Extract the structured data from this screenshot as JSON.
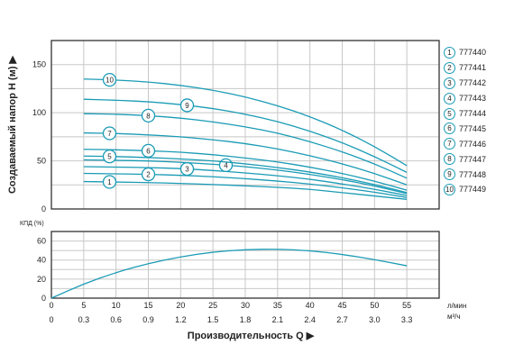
{
  "chart_data": [
    {
      "type": "line",
      "title": "",
      "ylabel": "Создаваемый напор Н (м) ▶",
      "ylim": [
        0,
        175
      ],
      "yticks": [
        0,
        50,
        100,
        150
      ],
      "x": [
        5,
        10,
        15,
        20,
        25,
        30,
        35,
        40,
        45,
        50,
        55
      ],
      "xlim": [
        0,
        60
      ],
      "grid": true,
      "legend_position": "right",
      "series": [
        {
          "name": "1",
          "values": [
            28.5,
            28,
            27.5,
            26.5,
            25.5,
            24,
            22.5,
            20.5,
            17,
            13.5,
            10
          ]
        },
        {
          "name": "2",
          "values": [
            37,
            36.5,
            36,
            35,
            33.5,
            31.5,
            29,
            26,
            22,
            17.5,
            12
          ]
        },
        {
          "name": "3",
          "values": [
            44,
            43.5,
            43,
            42,
            40,
            37.5,
            34.5,
            31,
            26,
            20.5,
            14
          ]
        },
        {
          "name": "4",
          "values": [
            51,
            50.5,
            50,
            48.5,
            46.5,
            44,
            40.5,
            36,
            30.5,
            24,
            16
          ]
        },
        {
          "name": "5",
          "values": [
            55,
            54.5,
            53.5,
            52,
            50,
            47,
            43,
            38.5,
            32.5,
            25.5,
            17
          ]
        },
        {
          "name": "6",
          "values": [
            62,
            61.5,
            60.5,
            59,
            56.5,
            53,
            49,
            43.5,
            37,
            29,
            19.5
          ]
        },
        {
          "name": "7",
          "values": [
            79,
            78.5,
            77,
            75,
            72,
            68,
            62.5,
            55.5,
            47,
            37,
            25
          ]
        },
        {
          "name": "8",
          "values": [
            99,
            98.5,
            97,
            94.5,
            90.5,
            85.5,
            79,
            70,
            59.5,
            47,
            32
          ]
        },
        {
          "name": "9",
          "values": [
            114,
            113,
            111.5,
            108.5,
            104.5,
            98.5,
            91,
            81,
            69,
            54.5,
            38
          ]
        },
        {
          "name": "10",
          "values": [
            135,
            134,
            132,
            128.5,
            123.5,
            116.5,
            107.5,
            96,
            82,
            65,
            45
          ]
        }
      ]
    },
    {
      "type": "line",
      "title": "",
      "ylabel": "КПД (%)",
      "ylim": [
        0,
        70
      ],
      "yticks": [
        0,
        20,
        40,
        60
      ],
      "x": [
        0,
        5,
        10,
        15,
        20,
        25,
        30,
        35,
        40,
        45,
        50,
        55
      ],
      "grid": true,
      "series": [
        {
          "name": "КПД",
          "values": [
            0,
            15,
            27,
            36.5,
            43.5,
            48.5,
            51,
            51.5,
            50,
            46,
            40.5,
            34
          ]
        }
      ],
      "xticks_lmin": [
        "0",
        "5",
        "10",
        "15",
        "20",
        "25",
        "30",
        "35",
        "40",
        "45",
        "50",
        "55"
      ],
      "xticks_m3h": [
        "0",
        "0.3",
        "0.6",
        "0.9",
        "1.2",
        "1.5",
        "1.8",
        "2.1",
        "2.4",
        "2.7",
        "3.0",
        "3.3"
      ],
      "xunit_lmin": "л/мин",
      "xunit_m3h": "м³/ч",
      "xlabel": "Производительность Q ▶"
    }
  ],
  "legend": [
    {
      "num": "1",
      "code": "777440"
    },
    {
      "num": "2",
      "code": "777441"
    },
    {
      "num": "3",
      "code": "777442"
    },
    {
      "num": "4",
      "code": "777443"
    },
    {
      "num": "5",
      "code": "777444"
    },
    {
      "num": "6",
      "code": "777445"
    },
    {
      "num": "7",
      "code": "777446"
    },
    {
      "num": "8",
      "code": "777447"
    },
    {
      "num": "9",
      "code": "777448"
    },
    {
      "num": "10",
      "code": "777449"
    }
  ],
  "colors": {
    "curve": "#1a9bb5",
    "grid": "#c8c8c8",
    "axis": "#222222",
    "text": "#222222"
  }
}
